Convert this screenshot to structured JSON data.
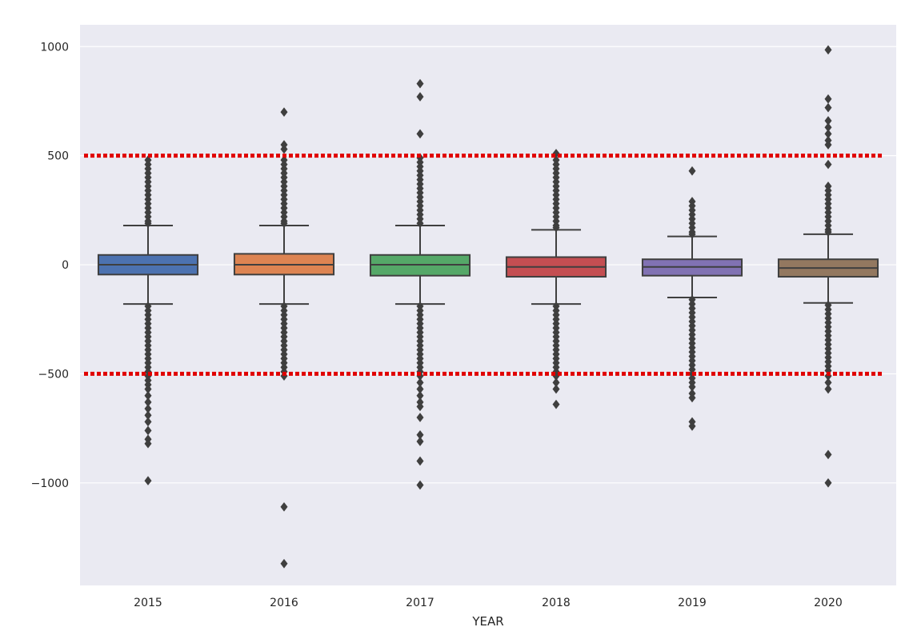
{
  "chart_data": {
    "type": "box",
    "xlabel": "YEAR",
    "ylabel": "",
    "title": "",
    "ylim": [
      -1470,
      1100
    ],
    "yticks": [
      1000,
      500,
      0,
      -500,
      -1000
    ],
    "ytick_labels": [
      "1000",
      "500",
      "0",
      "−500",
      "−1000"
    ],
    "grid": true,
    "categories": [
      "2015",
      "2016",
      "2017",
      "2018",
      "2019",
      "2020"
    ],
    "boxes": [
      {
        "category": "2015",
        "color": "#4c72b0",
        "q1": -45,
        "median": 0,
        "q3": 45,
        "whisker_low": -180,
        "whisker_high": 180,
        "outliers": [
          480,
          460,
          440,
          420,
          400,
          380,
          360,
          340,
          320,
          300,
          280,
          260,
          240,
          220,
          200,
          190,
          -190,
          -210,
          -230,
          -250,
          -270,
          -290,
          -310,
          -330,
          -350,
          -370,
          -390,
          -410,
          -430,
          -450,
          -470,
          -490,
          -510,
          -530,
          -550,
          -570,
          -600,
          -630,
          -660,
          -690,
          -720,
          -760,
          -800,
          -820,
          -990
        ]
      },
      {
        "category": "2016",
        "color": "#dd8452",
        "q1": -45,
        "median": 0,
        "q3": 50,
        "whisker_low": -180,
        "whisker_high": 180,
        "outliers": [
          700,
          550,
          530,
          480,
          460,
          440,
          420,
          400,
          380,
          360,
          340,
          320,
          300,
          280,
          260,
          240,
          220,
          200,
          190,
          -190,
          -210,
          -230,
          -250,
          -270,
          -290,
          -310,
          -330,
          -350,
          -370,
          -390,
          -410,
          -430,
          -450,
          -470,
          -490,
          -510,
          -1110,
          -1370
        ]
      },
      {
        "category": "2017",
        "color": "#55a868",
        "q1": -50,
        "median": 0,
        "q3": 45,
        "whisker_low": -180,
        "whisker_high": 180,
        "outliers": [
          830,
          770,
          600,
          490,
          470,
          450,
          430,
          410,
          390,
          370,
          350,
          330,
          310,
          290,
          270,
          250,
          230,
          210,
          190,
          -190,
          -210,
          -230,
          -250,
          -270,
          -290,
          -310,
          -330,
          -350,
          -370,
          -390,
          -410,
          -430,
          -450,
          -470,
          -490,
          -510,
          -540,
          -570,
          -600,
          -630,
          -650,
          -700,
          -780,
          -810,
          -900,
          -1010
        ]
      },
      {
        "category": "2018",
        "color": "#c44e52",
        "q1": -55,
        "median": -10,
        "q3": 35,
        "whisker_low": -180,
        "whisker_high": 160,
        "outliers": [
          510,
          480,
          460,
          440,
          420,
          400,
          380,
          360,
          340,
          320,
          300,
          280,
          260,
          240,
          220,
          200,
          180,
          170,
          -190,
          -210,
          -230,
          -250,
          -270,
          -290,
          -310,
          -330,
          -350,
          -370,
          -390,
          -410,
          -430,
          -450,
          -470,
          -490,
          -510,
          -540,
          -570,
          -640
        ]
      },
      {
        "category": "2019",
        "color": "#8172b3",
        "q1": -50,
        "median": -10,
        "q3": 25,
        "whisker_low": -150,
        "whisker_high": 130,
        "outliers": [
          430,
          290,
          270,
          250,
          230,
          210,
          190,
          170,
          150,
          140,
          -160,
          -180,
          -200,
          -220,
          -240,
          -260,
          -280,
          -300,
          -320,
          -340,
          -360,
          -380,
          -400,
          -420,
          -440,
          -460,
          -480,
          -500,
          -520,
          -540,
          -560,
          -590,
          -610,
          -720,
          -740
        ]
      },
      {
        "category": "2020",
        "color": "#937860",
        "q1": -55,
        "median": -15,
        "q3": 25,
        "whisker_low": -175,
        "whisker_high": 140,
        "outliers": [
          985,
          760,
          720,
          660,
          630,
          600,
          570,
          550,
          460,
          360,
          340,
          320,
          300,
          280,
          260,
          240,
          220,
          200,
          180,
          160,
          150,
          -185,
          -205,
          -225,
          -245,
          -265,
          -285,
          -305,
          -325,
          -345,
          -365,
          -385,
          -405,
          -425,
          -445,
          -465,
          -485,
          -510,
          -540,
          -570,
          -870,
          -1000
        ]
      }
    ],
    "reference_lines": [
      {
        "value": 500,
        "color": "#e00000",
        "style": "dotted"
      },
      {
        "value": -500,
        "color": "#e00000",
        "style": "dotted"
      }
    ]
  }
}
